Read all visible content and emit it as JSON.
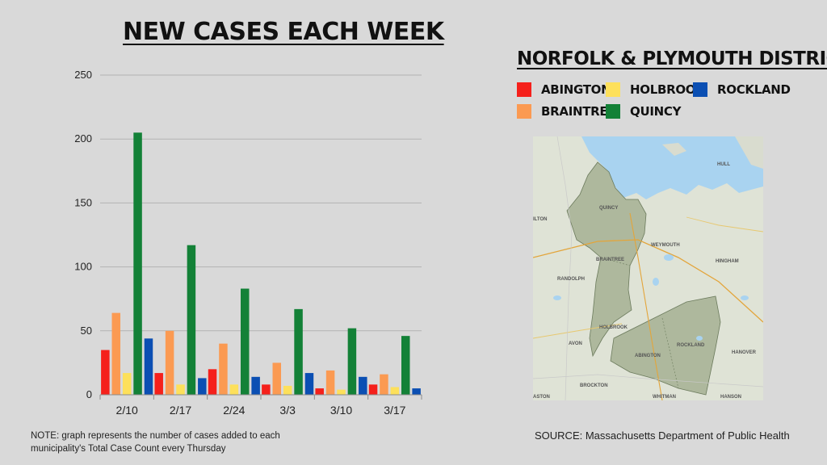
{
  "title": "NEW CASES EACH WEEK",
  "district_title": "NORFOLK & PLYMOUTH DISTRICT",
  "note": "NOTE: graph represents the number of cases added to each municipality's Total Case Count every Thursday",
  "source": "SOURCE: Massachusetts Department of Public Health",
  "colors": {
    "background": "#d9d9d9",
    "Abington": "#f5201b",
    "Braintree": "#fb9a52",
    "Holbrook": "#fde05b",
    "Quincy": "#138137",
    "Rockland": "#0b4fb3"
  },
  "legend": [
    {
      "label": "ABINGTON",
      "color": "#f5201b"
    },
    {
      "label": "HOLBROOK",
      "color": "#fde05b"
    },
    {
      "label": "ROCKLAND",
      "color": "#0b4fb3"
    },
    {
      "label": "BRAINTREE",
      "color": "#fb9a52"
    },
    {
      "label": "QUINCY",
      "color": "#138137"
    }
  ],
  "map_labels": {
    "quincy": "QUINCY",
    "weymouth": "WEYMOUTH",
    "braintree": "BRAINTREE",
    "hingham": "HINGHAM",
    "randolph": "RANDOLPH",
    "holbrook": "HOLBROOK",
    "avon": "AVON",
    "abington": "ABINGTON",
    "rockland": "ROCKLAND",
    "hanover": "HANOVER",
    "brockton": "BROCKTON",
    "whitman": "WHITMAN",
    "hanson": "HANSON",
    "easton": "ASTON",
    "milton": "ILTON",
    "hull": "HULL"
  },
  "chart_data": {
    "type": "bar",
    "title": "NEW CASES EACH WEEK",
    "categories": [
      "2/10",
      "2/17",
      "2/24",
      "3/3",
      "3/10",
      "3/17"
    ],
    "series": [
      {
        "name": "ABINGTON",
        "color": "#f5201b",
        "values": [
          35,
          17,
          20,
          8,
          5,
          8
        ]
      },
      {
        "name": "BRAINTREE",
        "color": "#fb9a52",
        "values": [
          64,
          50,
          40,
          25,
          19,
          16
        ]
      },
      {
        "name": "HOLBROOK",
        "color": "#fde05b",
        "values": [
          17,
          8,
          8,
          7,
          4,
          6
        ]
      },
      {
        "name": "QUINCY",
        "color": "#138137",
        "values": [
          205,
          117,
          83,
          67,
          52,
          46
        ]
      },
      {
        "name": "ROCKLAND",
        "color": "#0b4fb3",
        "values": [
          44,
          13,
          14,
          17,
          14,
          5
        ]
      }
    ],
    "ylim": [
      0,
      250
    ],
    "yticks": [
      0,
      50,
      100,
      150,
      200,
      250
    ],
    "grid": true,
    "legend_position": "right"
  }
}
